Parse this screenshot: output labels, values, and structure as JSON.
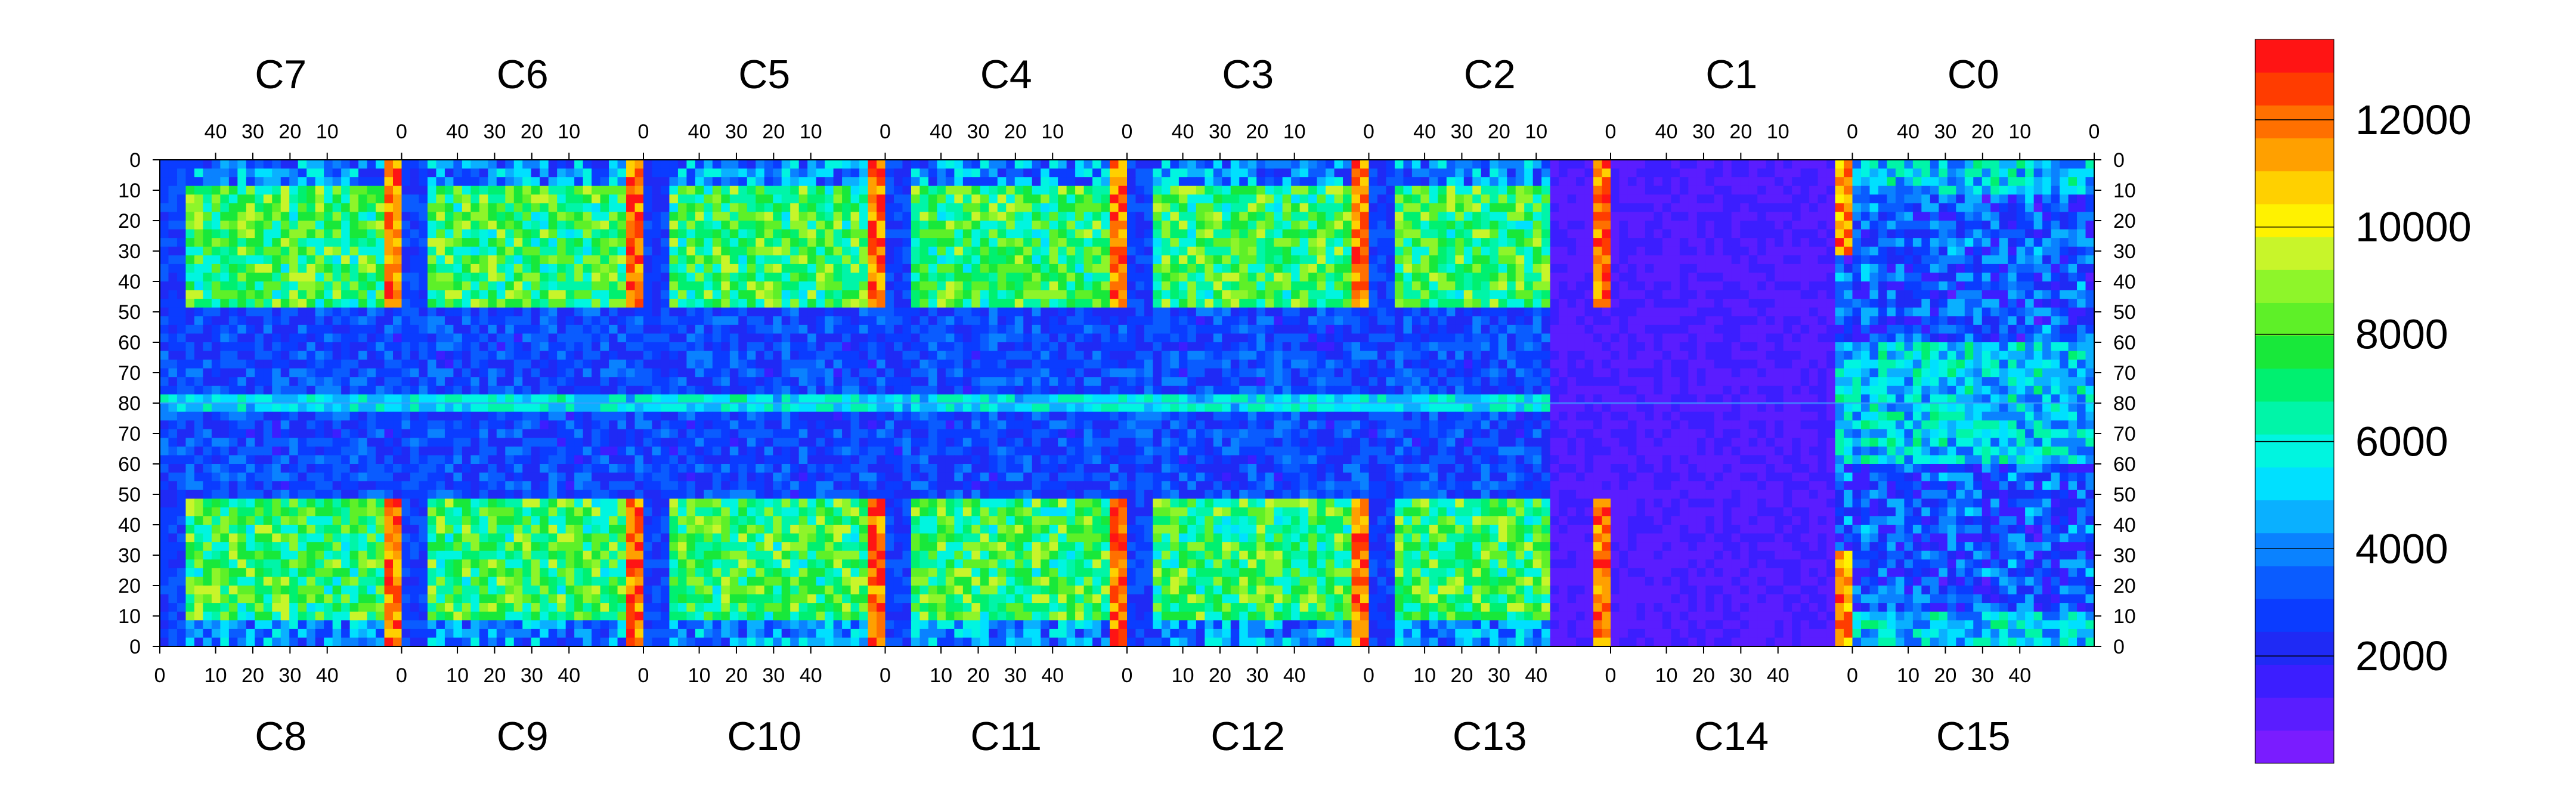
{
  "chart_data": {
    "type": "heatmap",
    "title": "",
    "xlabel": "",
    "ylabel": "",
    "top_chip_labels": [
      "C7",
      "C6",
      "C5",
      "C4",
      "C3",
      "C2",
      "C1",
      "C0"
    ],
    "bottom_chip_labels": [
      "C8",
      "C9",
      "C10",
      "C11",
      "C12",
      "C13",
      "C14",
      "C15"
    ],
    "top_x_tick_labels": [
      "40",
      "30",
      "20",
      "10",
      "0"
    ],
    "bottom_x_tick_labels": [
      "0",
      "10",
      "20",
      "30",
      "40"
    ],
    "y_tick_labels": [
      "0",
      "10",
      "20",
      "30",
      "40",
      "50",
      "60",
      "70",
      "80",
      "70",
      "60",
      "50",
      "40",
      "30",
      "20",
      "10",
      "0"
    ],
    "chip_columns": 52,
    "rows_per_half": 80,
    "colorbar": {
      "min": 0,
      "max": 13500,
      "tick_values": [
        2000,
        4000,
        6000,
        8000,
        10000,
        12000
      ],
      "tick_labels": [
        "2000",
        "4000",
        "6000",
        "8000",
        "10000",
        "12000"
      ],
      "colors": [
        "#7a1cff",
        "#5a1dff",
        "#3c1eff",
        "#1f2af5",
        "#0b3cff",
        "#0a5cff",
        "#0a82ff",
        "#0ab0ff",
        "#00e0ff",
        "#00f5e0",
        "#00f5a8",
        "#00f070",
        "#18e83a",
        "#5ef028",
        "#8ef52a",
        "#c8f52a",
        "#fff200",
        "#ffd000",
        "#ffa000",
        "#ff7000",
        "#ff3c00",
        "#ff1414"
      ]
    }
  }
}
